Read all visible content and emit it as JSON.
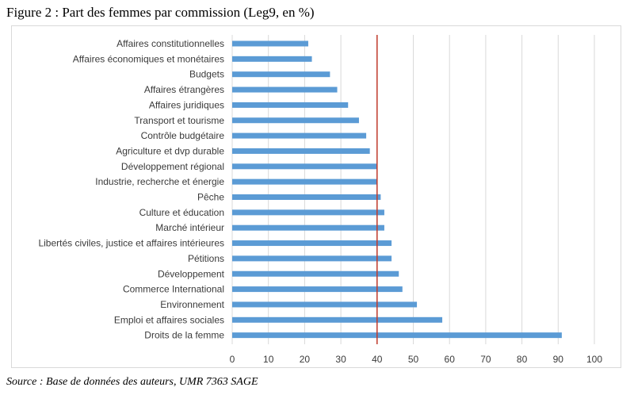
{
  "figure": {
    "title": "Figure 2 : Part des femmes par commission (Leg9, en %)",
    "source": "Source : Base de données des auteurs, UMR 7363 SAGE"
  },
  "colors": {
    "bar": "#5b9bd5",
    "reference_line": "#c0392b",
    "grid": "#d9d9d9",
    "text": "#3a3a3a"
  },
  "chart_data": {
    "type": "bar",
    "orientation": "horizontal",
    "title": "",
    "xlabel": "",
    "ylabel": "",
    "xlim": [
      0,
      100
    ],
    "x_ticks": [
      0,
      10,
      20,
      30,
      40,
      50,
      60,
      70,
      80,
      90,
      100
    ],
    "grid": "vertical",
    "legend": "none",
    "reference_line": 40,
    "categories": [
      "Affaires constitutionnelles",
      "Affaires économiques et monétaires",
      "Budgets",
      "Affaires étrangères",
      "Affaires juridiques",
      "Transport et tourisme",
      "Contrôle budgétaire",
      "Agriculture et dvp durable",
      "Développement régional",
      "Industrie, recherche et énergie",
      "Pêche",
      "Culture et éducation",
      "Marché intérieur",
      "Libertés civiles, justice et affaires intérieures",
      "Pétitions",
      "Développement",
      "Commerce International",
      "Environnement",
      "Emploi et affaires sociales",
      "Droits de la femme"
    ],
    "values": [
      21,
      22,
      27,
      29,
      32,
      35,
      37,
      38,
      40,
      40,
      41,
      42,
      42,
      44,
      44,
      46,
      47,
      51,
      58,
      91
    ]
  }
}
